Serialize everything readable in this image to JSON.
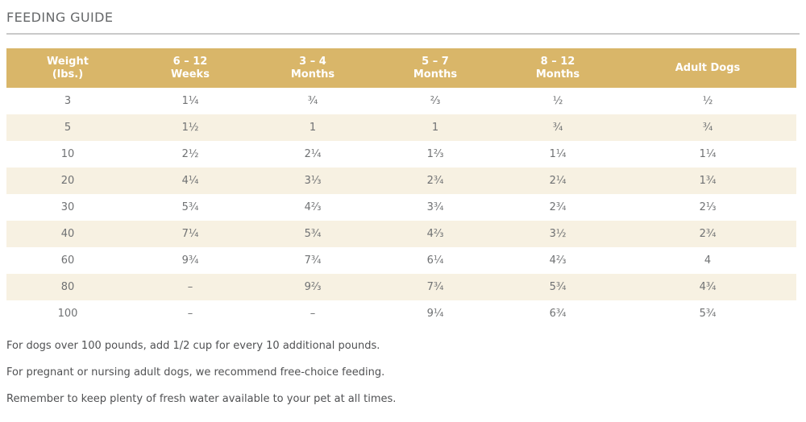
{
  "page": {
    "title": "FEEDING GUIDE"
  },
  "table": {
    "headers": [
      "Weight\n(lbs.)",
      "6 – 12\nWeeks",
      "3 – 4\nMonths",
      "5 – 7\nMonths",
      "8 – 12\nMonths",
      "Adult Dogs"
    ],
    "rows": [
      [
        "3",
        "1¼",
        "¾",
        "⅔",
        "½",
        "½"
      ],
      [
        "5",
        "1½",
        "1",
        "1",
        "¾",
        "¾"
      ],
      [
        "10",
        "2½",
        "2¼",
        "1⅔",
        "1¼",
        "1¼"
      ],
      [
        "20",
        "4¼",
        "3⅓",
        "2¾",
        "2¼",
        "1¾"
      ],
      [
        "30",
        "5¾",
        "4⅔",
        "3¾",
        "2¾",
        "2⅓"
      ],
      [
        "40",
        "7¼",
        "5¾",
        "4⅔",
        "3½",
        "2¾"
      ],
      [
        "60",
        "9¾",
        "7¾",
        "6¼",
        "4⅔",
        "4"
      ],
      [
        "80",
        "–",
        "9⅔",
        "7¾",
        "5¾",
        "4¾"
      ],
      [
        "100",
        "–",
        "–",
        "9¼",
        "6¾",
        "5¾"
      ]
    ]
  },
  "footnotes": [
    "For dogs over 100 pounds, add 1/2 cup for every 10 additional pounds.",
    "For pregnant or nursing adult dogs, we recommend free-choice feeding.",
    "Remember to keep plenty of fresh water available to your pet at all times."
  ],
  "colors": {
    "header_bg": "#d9b669",
    "header_text": "#ffffff",
    "stripe_bg": "#f7f1e2",
    "heading_text": "#66686a",
    "rule": "#c9c9c9",
    "cell_text": "#6f7173",
    "note_text": "#505153"
  }
}
